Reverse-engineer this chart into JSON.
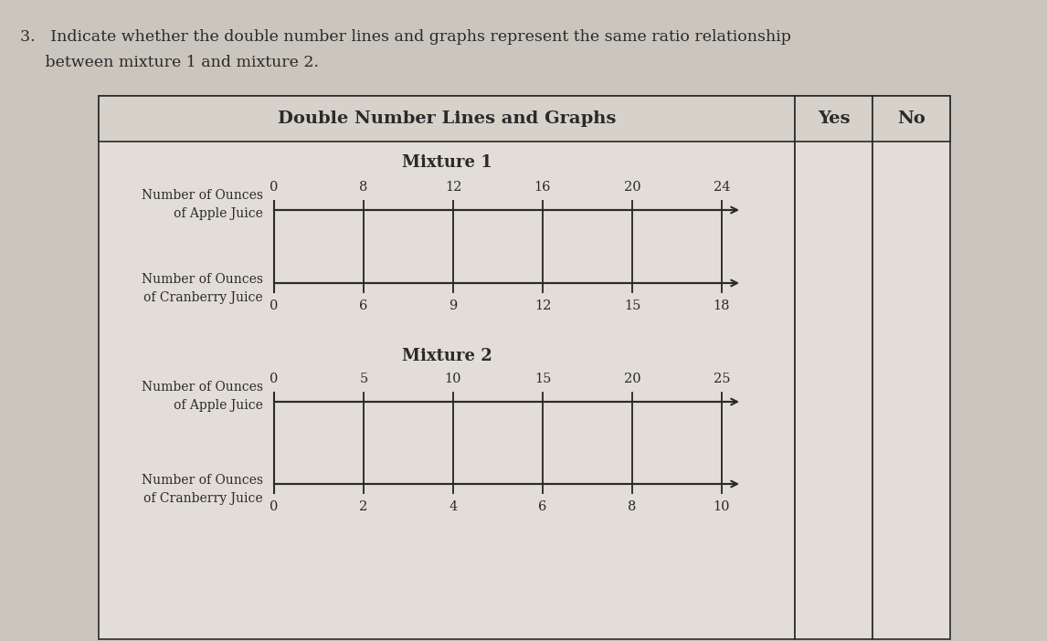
{
  "question_line1": "3.   Indicate whether the double number lines and graphs represent the same ratio relationship",
  "question_line2": "     between mixture 1 and mixture 2.",
  "table_header": "Double Number Lines and Graphs",
  "col_yes": "Yes",
  "col_no": "No",
  "mixture1_label": "Mixture 1",
  "mixture1_apple_ticks": [
    0,
    8,
    12,
    16,
    20,
    24
  ],
  "mixture1_cranberry_ticks": [
    0,
    6,
    9,
    12,
    15,
    18
  ],
  "mixture1_apple_label": "Number of Ounces\nof Apple Juice",
  "mixture1_cranberry_label": "Number of Ounces\nof Cranberry Juice",
  "mixture2_label": "Mixture 2",
  "mixture2_apple_ticks": [
    0,
    5,
    10,
    15,
    20,
    25
  ],
  "mixture2_cranberry_ticks": [
    0,
    2,
    4,
    6,
    8,
    10
  ],
  "mixture2_apple_label": "Number of Ounces\nof Apple Juice",
  "mixture2_cranberry_label": "Number of Ounces\nof Cranberry Juice",
  "bg_color": "#cac6be",
  "table_bg": "#e2ddd6",
  "header_bg": "#d6d1c9",
  "line_color": "#2a2a2a",
  "text_color": "#2a2a2a",
  "font_size_question": 12.5,
  "font_size_header": 14,
  "font_size_label": 10,
  "font_size_tick": 10.5,
  "font_size_mixture": 13
}
